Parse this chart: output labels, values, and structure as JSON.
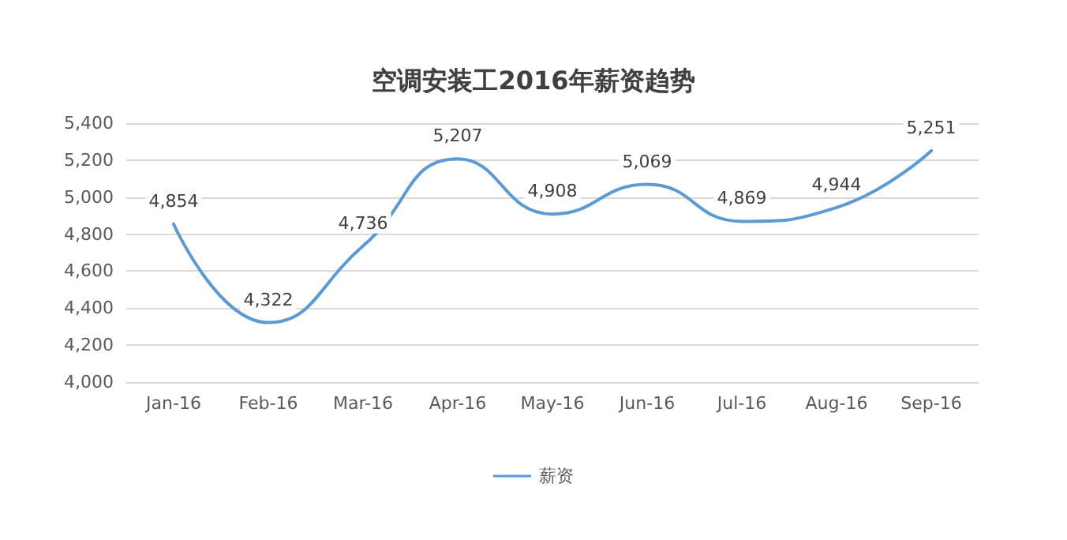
{
  "chart_data": {
    "type": "line",
    "title": "空调安装工2016年薪资趋势",
    "categories": [
      "Jan-16",
      "Feb-16",
      "Mar-16",
      "Apr-16",
      "May-16",
      "Jun-16",
      "Jul-16",
      "Aug-16",
      "Sep-16"
    ],
    "series": [
      {
        "name": "薪资",
        "color": "#5b9bd5",
        "values": [
          4854,
          4322,
          4736,
          5207,
          4908,
          5069,
          4869,
          4944,
          5251
        ],
        "value_labels": [
          "4,854",
          "4,322",
          "4,736",
          "5,207",
          "4,908",
          "5,069",
          "4,869",
          "4,944",
          "5,251"
        ]
      }
    ],
    "ylim": [
      4000,
      5400
    ],
    "yticks": [
      {
        "value": 4000,
        "label": "4,000"
      },
      {
        "value": 4200,
        "label": "4,200"
      },
      {
        "value": 4400,
        "label": "4,400"
      },
      {
        "value": 4600,
        "label": "4,600"
      },
      {
        "value": 4800,
        "label": "4,800"
      },
      {
        "value": 5000,
        "label": "5,000"
      },
      {
        "value": 5200,
        "label": "5,200"
      },
      {
        "value": 5400,
        "label": "5,400"
      }
    ],
    "grid": "y",
    "legend": "bottom",
    "marker": "none",
    "line_style": "solid"
  }
}
